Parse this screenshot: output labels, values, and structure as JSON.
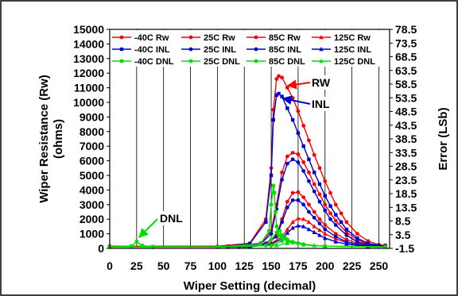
{
  "chart_data": {
    "type": "line",
    "xlabel": "Wiper Setting (decimal)",
    "ylabel": "Wiper Resistance (Rw)\n(ohms)",
    "y2label": "Error (LSb)",
    "xlim": [
      0,
      260
    ],
    "ylim": [
      0,
      15000
    ],
    "y2lim": [
      -1.5,
      78.5
    ],
    "xticks": [
      "0",
      "25",
      "50",
      "75",
      "100",
      "125",
      "150",
      "175",
      "200",
      "225",
      "250"
    ],
    "yticks": [
      "0",
      "1000",
      "2000",
      "3000",
      "4000",
      "5000",
      "6000",
      "7000",
      "8000",
      "9000",
      "10000",
      "11000",
      "12000",
      "13000",
      "14000",
      "15000"
    ],
    "y2ticks": [
      "-1.5",
      "3.5",
      "8.5",
      "13.5",
      "18.5",
      "23.5",
      "28.5",
      "33.5",
      "38.5",
      "43.5",
      "48.5",
      "53.5",
      "58.5",
      "63.5",
      "68.5",
      "73.5",
      "78.5"
    ],
    "grid": "vertical only",
    "legend_position": "top, inside plot",
    "annotations": [
      "RW",
      "INL",
      "DNL"
    ],
    "series": [
      {
        "name": "-40C Rw",
        "axis": "left",
        "color": "#ff0000",
        "marker": "circle",
        "x": [
          0,
          100,
          130,
          145,
          150,
          152,
          155,
          157,
          160,
          165,
          170,
          175,
          180,
          185,
          190,
          195,
          200,
          205,
          210,
          215,
          220,
          230,
          240,
          250,
          256
        ],
        "y": [
          150,
          150,
          350,
          2000,
          5500,
          9500,
          11600,
          11800,
          11700,
          11000,
          10300,
          9400,
          8400,
          7400,
          6400,
          5500,
          4600,
          3800,
          3000,
          2400,
          1800,
          1000,
          500,
          250,
          200
        ]
      },
      {
        "name": "25C Rw",
        "axis": "left",
        "color": "#ff0000",
        "marker": "circle",
        "x": [
          0,
          110,
          140,
          150,
          155,
          160,
          165,
          170,
          175,
          180,
          185,
          190,
          195,
          200,
          205,
          210,
          220,
          230,
          240,
          256
        ],
        "y": [
          150,
          150,
          350,
          1200,
          3000,
          5200,
          6300,
          6550,
          6450,
          5900,
          5200,
          4400,
          3700,
          3000,
          2400,
          1900,
          1100,
          600,
          300,
          200
        ]
      },
      {
        "name": "85C Rw",
        "axis": "left",
        "color": "#ff0000",
        "marker": "circle",
        "x": [
          0,
          120,
          145,
          155,
          160,
          165,
          170,
          175,
          180,
          185,
          190,
          195,
          200,
          210,
          220,
          230,
          240,
          256
        ],
        "y": [
          150,
          150,
          350,
          900,
          2000,
          3200,
          3800,
          3850,
          3500,
          3000,
          2500,
          2000,
          1600,
          1000,
          600,
          350,
          250,
          200
        ]
      },
      {
        "name": "125C Rw",
        "axis": "left",
        "color": "#ff0000",
        "marker": "triangle",
        "x": [
          0,
          130,
          150,
          160,
          165,
          170,
          175,
          180,
          185,
          190,
          195,
          200,
          210,
          220,
          230,
          240,
          256
        ],
        "y": [
          150,
          150,
          350,
          800,
          1300,
          1800,
          2050,
          2000,
          1800,
          1500,
          1250,
          1000,
          650,
          400,
          300,
          250,
          200
        ]
      },
      {
        "name": "-40C INL",
        "axis": "left",
        "color": "#0000cc",
        "marker": "square",
        "x": [
          0,
          100,
          130,
          145,
          150,
          152,
          155,
          157,
          160,
          165,
          170,
          175,
          180,
          185,
          190,
          195,
          200,
          205,
          210,
          215,
          220,
          230,
          240,
          250,
          256
        ],
        "y": [
          100,
          100,
          300,
          1800,
          5000,
          8800,
          10500,
          10600,
          10400,
          9600,
          8800,
          7900,
          7000,
          6100,
          5200,
          4400,
          3600,
          2900,
          2300,
          1800,
          1300,
          700,
          350,
          200,
          150
        ]
      },
      {
        "name": "25C INL",
        "axis": "left",
        "color": "#0000cc",
        "marker": "circle",
        "x": [
          0,
          110,
          140,
          150,
          155,
          160,
          165,
          170,
          175,
          180,
          185,
          190,
          195,
          200,
          205,
          210,
          220,
          230,
          240,
          256
        ],
        "y": [
          100,
          100,
          300,
          1000,
          2700,
          4700,
          5800,
          6100,
          5900,
          5300,
          4600,
          3900,
          3200,
          2600,
          2000,
          1600,
          900,
          450,
          250,
          150
        ]
      },
      {
        "name": "85C INL",
        "axis": "left",
        "color": "#0000cc",
        "marker": "circle",
        "x": [
          0,
          120,
          145,
          155,
          160,
          165,
          170,
          175,
          180,
          185,
          190,
          195,
          200,
          210,
          220,
          230,
          240,
          256
        ],
        "y": [
          100,
          100,
          300,
          800,
          1800,
          2800,
          3300,
          3300,
          3000,
          2500,
          2100,
          1700,
          1300,
          800,
          450,
          250,
          200,
          150
        ]
      },
      {
        "name": "125C INL",
        "axis": "left",
        "color": "#0000cc",
        "marker": "triangle",
        "x": [
          0,
          130,
          150,
          160,
          165,
          170,
          175,
          180,
          185,
          190,
          195,
          200,
          210,
          220,
          230,
          240,
          256
        ],
        "y": [
          100,
          100,
          300,
          650,
          1050,
          1400,
          1550,
          1500,
          1300,
          1100,
          900,
          700,
          450,
          300,
          200,
          150,
          150
        ]
      },
      {
        "name": "-40C DNL",
        "axis": "left",
        "color": "#00dd00",
        "marker": "square",
        "x": [
          0,
          20,
          25,
          30,
          40,
          100,
          140,
          148,
          150,
          152,
          153,
          154,
          155,
          157,
          160,
          165,
          170,
          180,
          200,
          256
        ],
        "y": [
          100,
          150,
          450,
          200,
          120,
          100,
          300,
          1200,
          3000,
          4300,
          3800,
          2500,
          1500,
          900,
          700,
          500,
          400,
          250,
          150,
          100
        ]
      },
      {
        "name": "25C DNL",
        "axis": "left",
        "color": "#00dd00",
        "marker": "circle",
        "x": [
          0,
          100,
          145,
          150,
          155,
          158,
          160,
          165,
          170,
          180,
          200,
          256
        ],
        "y": [
          100,
          100,
          200,
          600,
          1100,
          1200,
          900,
          600,
          400,
          250,
          150,
          100
        ]
      },
      {
        "name": "85C DNL",
        "axis": "left",
        "color": "#00dd00",
        "marker": "circle",
        "x": [
          0,
          100,
          150,
          160,
          163,
          165,
          170,
          175,
          180,
          200,
          256
        ],
        "y": [
          100,
          100,
          200,
          500,
          700,
          600,
          450,
          350,
          250,
          150,
          100
        ]
      },
      {
        "name": "125C DNL",
        "axis": "left",
        "color": "#00dd00",
        "marker": "triangle",
        "x": [
          0,
          100,
          155,
          165,
          170,
          175,
          180,
          190,
          200,
          256
        ],
        "y": [
          100,
          100,
          200,
          350,
          450,
          400,
          300,
          200,
          150,
          100
        ]
      }
    ]
  }
}
